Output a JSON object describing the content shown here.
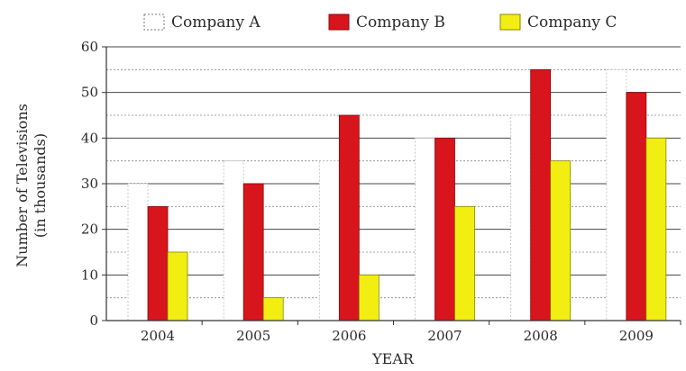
{
  "chart_data": {
    "type": "bar",
    "categories": [
      "2004",
      "2005",
      "2006",
      "2007",
      "2008",
      "2009"
    ],
    "series": [
      {
        "name": "Company A",
        "values": [
          30,
          35,
          35,
          40,
          45,
          55
        ],
        "color": "#ffffff"
      },
      {
        "name": "Company B",
        "values": [
          25,
          30,
          45,
          40,
          55,
          50
        ],
        "color": "#d8141c"
      },
      {
        "name": "Company C",
        "values": [
          15,
          5,
          10,
          25,
          35,
          40
        ],
        "color": "#f2ee12"
      }
    ],
    "xlabel": "YEAR",
    "ylabel": "Number of Televisions",
    "ylabel_sub": "(in thousands)",
    "ylim": [
      0,
      60
    ],
    "yticks": [
      0,
      10,
      20,
      30,
      40,
      50,
      60
    ],
    "grid": true,
    "legend_position": "top"
  }
}
